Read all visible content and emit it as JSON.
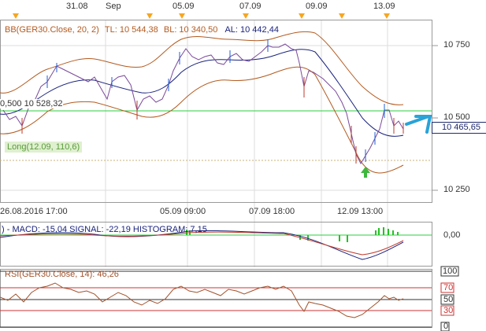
{
  "top_dates": [
    "31.08",
    "Sep",
    "05.09",
    "07.09",
    "09.09",
    "13.09"
  ],
  "price_axis": [
    "10 750",
    "10 500",
    "10 250"
  ],
  "current_price": "10 465,65",
  "bb_header": {
    "name": "BB(GER30.Close, 20, 2)",
    "tl_label": "TL: 10 544,38",
    "bl_label": "BL: 10 340,50",
    "al_label": "AL: 10 442,44"
  },
  "left_cursor_value": "0,500 10 528,32",
  "long_signal_label": "Long(12.09, 110,6)",
  "x_axis": [
    "26.08.2016 17:00",
    "05.09 09:00",
    "07.09 18:00",
    "12.09 13:00"
  ],
  "macd": {
    "label": ") - MACD: -15,04 SIGNAL: -22,19 HISTOGRAM: 7,15",
    "axis": "0,00"
  },
  "rsi": {
    "label": "RSI(GER30.Close, 14): 46,26",
    "axis": [
      "100",
      "70",
      "50",
      "30",
      "0"
    ]
  },
  "colors": {
    "up": "#1f5fd6",
    "down": "#c0392b",
    "bands": "#b35a1f",
    "middle": "#1a237e",
    "hline": "#2ecc40",
    "arrow": "#29a3d8",
    "macd_hist": "#22c322",
    "rsi_line": "#a0522d",
    "rsi_levels": "#cc3333"
  }
}
